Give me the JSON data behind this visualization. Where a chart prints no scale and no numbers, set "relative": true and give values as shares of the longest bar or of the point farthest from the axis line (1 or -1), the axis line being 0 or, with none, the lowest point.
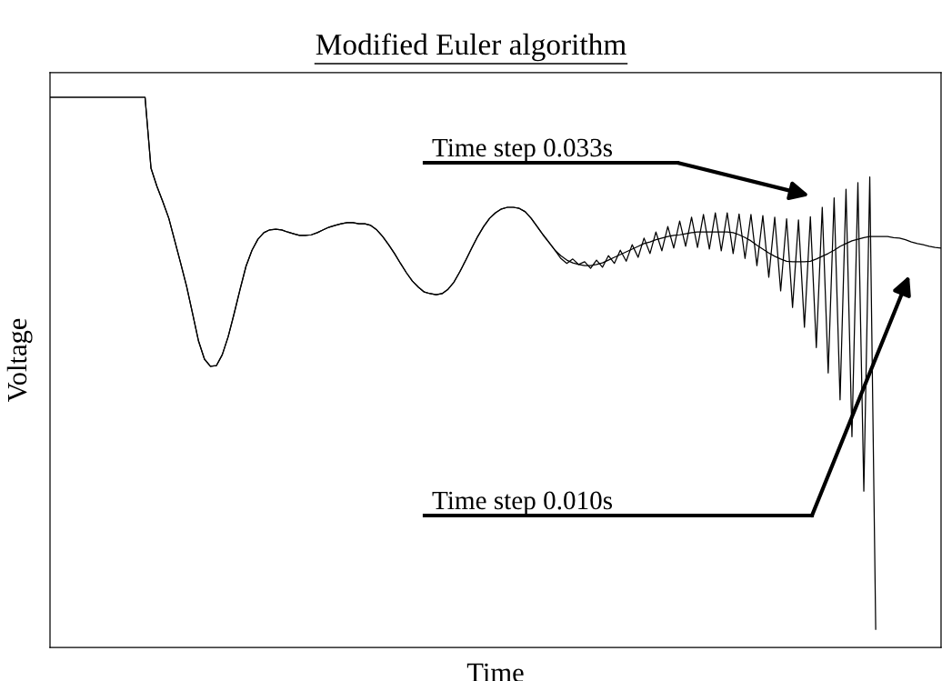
{
  "chart_data": {
    "type": "line",
    "title": "Modified Euler algorithm",
    "xlabel": "Time",
    "ylabel": "Voltage",
    "relative": true,
    "categories": [
      null,
      null,
      null,
      null,
      null,
      null,
      null,
      null,
      null,
      null,
      null,
      null,
      null,
      null,
      null,
      null,
      null,
      null,
      null,
      null,
      null,
      null,
      null,
      null,
      null,
      null,
      null,
      null,
      null,
      null,
      null,
      null,
      null,
      null,
      null,
      null,
      null,
      null,
      null,
      null,
      null,
      null,
      null,
      null,
      null,
      null,
      null,
      null,
      null,
      null,
      null,
      null,
      null,
      null,
      null,
      null,
      null,
      null,
      null,
      null,
      null,
      null,
      null,
      null,
      null,
      null,
      null,
      null,
      null,
      null,
      null,
      null,
      null,
      null,
      null,
      null,
      null,
      null,
      null,
      null,
      null,
      null,
      null,
      null,
      null,
      null,
      null,
      null,
      null,
      null,
      null,
      null,
      null,
      null,
      null,
      null,
      null,
      null,
      null,
      null,
      null,
      null,
      null,
      null,
      null,
      null,
      null,
      null,
      null,
      null,
      null,
      null,
      null,
      null,
      null,
      null,
      null,
      null,
      null,
      null,
      null,
      null,
      null,
      null,
      null,
      null,
      null,
      null,
      null,
      null,
      null,
      null,
      null,
      null,
      null,
      null,
      null,
      null,
      null,
      null,
      null,
      null,
      null,
      null,
      null,
      null,
      null,
      null,
      null,
      null,
      null
    ],
    "series": [
      {
        "color": "#000000",
        "values": [
          1.0,
          1.0,
          1.0,
          1.0,
          1.0,
          1.0,
          1.0,
          1.0,
          1.0,
          1.0,
          1.0,
          1.0,
          1.0,
          1.0,
          1.0,
          1.0,
          1.0,
          0.871,
          0.838,
          0.81,
          0.78,
          0.739,
          0.698,
          0.656,
          0.607,
          0.557,
          0.524,
          0.511,
          0.512,
          0.532,
          0.565,
          0.607,
          0.651,
          0.693,
          0.722,
          0.742,
          0.754,
          0.759,
          0.76,
          0.759,
          0.755,
          0.752,
          0.749,
          0.749,
          0.75,
          0.754,
          0.759,
          0.764,
          0.767,
          0.77,
          0.772,
          0.772,
          0.77,
          0.77,
          0.767,
          0.759,
          0.747,
          0.732,
          0.716,
          0.698,
          0.681,
          0.666,
          0.655,
          0.646,
          0.643,
          0.641,
          0.643,
          0.651,
          0.664,
          0.683,
          0.704,
          0.726,
          0.747,
          0.765,
          0.78,
          0.79,
          0.797,
          0.8,
          0.8,
          0.798,
          0.792,
          0.78,
          0.765,
          0.75,
          0.736,
          0.722,
          0.712,
          0.704,
          0.699,
          0.696,
          0.694,
          0.694,
          0.696,
          0.699,
          0.704,
          0.709,
          0.714,
          0.719,
          0.724,
          0.729,
          0.734,
          0.737,
          0.741,
          0.744,
          0.747,
          0.749,
          0.75,
          0.752,
          0.754,
          0.755,
          0.755,
          0.755,
          0.755,
          0.755,
          0.755,
          0.754,
          0.75,
          0.745,
          0.739,
          0.731,
          0.724,
          0.717,
          0.711,
          0.706,
          0.702,
          0.701,
          0.701,
          0.701,
          0.702,
          0.706,
          0.711,
          0.716,
          0.722,
          0.729,
          0.734,
          0.739,
          0.742,
          0.745,
          0.747,
          0.747,
          0.747,
          0.747,
          0.745,
          0.744,
          0.741,
          0.737,
          0.734,
          0.732,
          0.729,
          0.727,
          0.726
        ]
      },
      {
        "color": "#000000",
        "values": [
          1.0,
          1.0,
          1.0,
          1.0,
          1.0,
          1.0,
          1.0,
          1.0,
          1.0,
          1.0,
          1.0,
          1.0,
          1.0,
          1.0,
          1.0,
          1.0,
          1.0,
          0.871,
          0.838,
          0.81,
          0.78,
          0.739,
          0.698,
          0.656,
          0.607,
          0.557,
          0.524,
          0.511,
          0.512,
          0.532,
          0.565,
          0.607,
          0.651,
          0.693,
          0.722,
          0.742,
          0.754,
          0.759,
          0.76,
          0.759,
          0.755,
          0.752,
          0.749,
          0.749,
          0.75,
          0.754,
          0.759,
          0.764,
          0.767,
          0.77,
          0.772,
          0.772,
          0.77,
          0.77,
          0.767,
          0.759,
          0.747,
          0.732,
          0.716,
          0.698,
          0.681,
          0.666,
          0.655,
          0.646,
          0.643,
          0.641,
          0.643,
          0.651,
          0.664,
          0.683,
          0.704,
          0.726,
          0.747,
          0.765,
          0.78,
          0.79,
          0.797,
          0.8,
          0.8,
          0.798,
          0.792,
          0.78,
          0.765,
          0.75,
          0.736,
          0.722,
          0.707,
          0.698,
          0.706,
          0.696,
          0.701,
          0.689,
          0.704,
          0.691,
          0.712,
          0.698,
          0.722,
          0.702,
          0.732,
          0.709,
          0.744,
          0.716,
          0.755,
          0.721,
          0.765,
          0.726,
          0.775,
          0.729,
          0.782,
          0.727,
          0.787,
          0.724,
          0.79,
          0.721,
          0.79,
          0.716,
          0.788,
          0.707,
          0.787,
          0.694,
          0.785,
          0.673,
          0.782,
          0.648,
          0.779,
          0.618,
          0.777,
          0.582,
          0.783,
          0.545,
          0.8,
          0.499,
          0.817,
          0.45,
          0.833,
          0.383,
          0.845,
          0.284,
          0.855,
          0.033,
          null,
          null,
          null,
          null,
          null,
          null,
          null,
          null,
          null,
          null,
          null
        ]
      }
    ],
    "annotations": [
      "Time step 0.033s",
      "Time step 0.010s"
    ]
  }
}
